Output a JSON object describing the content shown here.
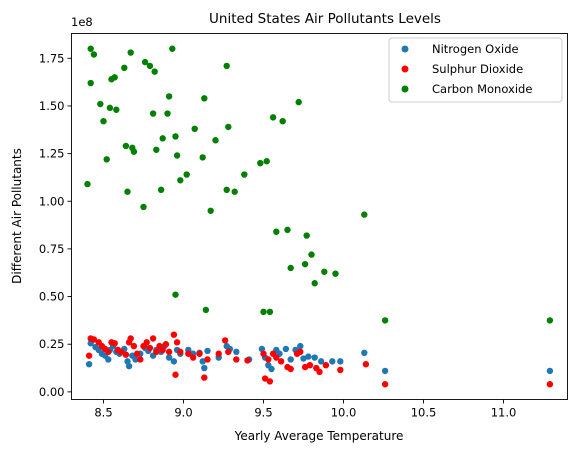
{
  "chart_data": {
    "type": "scatter",
    "title": "United States Air Pollutants Levels",
    "xlabel": "Yearly Average Temperature",
    "ylabel": "Different Air Pollutants",
    "y_offset_label": "1e8",
    "xlim": [
      8.3,
      11.4
    ],
    "ylim": [
      -4000000,
      188000000
    ],
    "x_ticks": [
      8.5,
      9.0,
      9.5,
      10.0,
      10.5,
      11.0
    ],
    "x_tick_labels": [
      "8.5",
      "9.0",
      "9.5",
      "10.0",
      "10.5",
      "11.0"
    ],
    "y_ticks": [
      0,
      25000000,
      50000000,
      75000000,
      100000000,
      125000000,
      150000000,
      175000000
    ],
    "y_tick_labels": [
      "0.00",
      "0.25",
      "0.50",
      "0.75",
      "1.00",
      "1.25",
      "1.50",
      "1.75"
    ],
    "grid": false,
    "legend_position": "top-right",
    "series": [
      {
        "name": "Nitrogen Oxide",
        "color": "#1f77b4",
        "points": [
          [
            8.41,
            14500000
          ],
          [
            8.42,
            25500000
          ],
          [
            8.45,
            23500000
          ],
          [
            8.47,
            22000000
          ],
          [
            8.49,
            20000000
          ],
          [
            8.51,
            19000000
          ],
          [
            8.53,
            17000000
          ],
          [
            8.54,
            22000000
          ],
          [
            8.56,
            24000000
          ],
          [
            8.58,
            21000000
          ],
          [
            8.6,
            20000000
          ],
          [
            8.63,
            22500000
          ],
          [
            8.65,
            16000000
          ],
          [
            8.66,
            13500000
          ],
          [
            8.68,
            19000000
          ],
          [
            8.7,
            17000000
          ],
          [
            8.73,
            20000000
          ],
          [
            8.76,
            23000000
          ],
          [
            8.78,
            21500000
          ],
          [
            8.81,
            19000000
          ],
          [
            8.83,
            22000000
          ],
          [
            8.86,
            21000000
          ],
          [
            8.88,
            24000000
          ],
          [
            8.91,
            18000000
          ],
          [
            8.94,
            16000000
          ],
          [
            8.96,
            22000000
          ],
          [
            8.98,
            20000000
          ],
          [
            9.03,
            22000000
          ],
          [
            9.06,
            20000000
          ],
          [
            9.1,
            20500000
          ],
          [
            9.12,
            16000000
          ],
          [
            9.13,
            12500000
          ],
          [
            9.15,
            21500000
          ],
          [
            9.22,
            18000000
          ],
          [
            9.27,
            24000000
          ],
          [
            9.29,
            22500000
          ],
          [
            9.33,
            21000000
          ],
          [
            9.41,
            17000000
          ],
          [
            9.49,
            22500000
          ],
          [
            9.51,
            18000000
          ],
          [
            9.53,
            14000000
          ],
          [
            9.55,
            12000000
          ],
          [
            9.58,
            22000000
          ],
          [
            9.6,
            20000000
          ],
          [
            9.64,
            22500000
          ],
          [
            9.67,
            17000000
          ],
          [
            9.7,
            22000000
          ],
          [
            9.73,
            24000000
          ],
          [
            9.75,
            17500000
          ],
          [
            9.78,
            18500000
          ],
          [
            9.82,
            18000000
          ],
          [
            9.86,
            16000000
          ],
          [
            9.93,
            16000000
          ],
          [
            9.98,
            16000000
          ],
          [
            10.13,
            20500000
          ],
          [
            10.26,
            11000000
          ],
          [
            11.29,
            11000000
          ]
        ]
      },
      {
        "name": "Sulphur Dioxide",
        "color": "#ff0000",
        "points": [
          [
            8.41,
            19000000
          ],
          [
            8.42,
            28000000
          ],
          [
            8.44,
            27500000
          ],
          [
            8.47,
            26000000
          ],
          [
            8.49,
            24000000
          ],
          [
            8.51,
            22500000
          ],
          [
            8.53,
            21000000
          ],
          [
            8.55,
            26000000
          ],
          [
            8.57,
            25500000
          ],
          [
            8.59,
            22000000
          ],
          [
            8.61,
            21000000
          ],
          [
            8.64,
            19500000
          ],
          [
            8.66,
            26000000
          ],
          [
            8.67,
            28000000
          ],
          [
            8.69,
            24000000
          ],
          [
            8.71,
            20000000
          ],
          [
            8.73,
            17000000
          ],
          [
            8.75,
            24000000
          ],
          [
            8.77,
            26000000
          ],
          [
            8.79,
            23000000
          ],
          [
            8.81,
            28000000
          ],
          [
            8.83,
            21000000
          ],
          [
            8.85,
            24000000
          ],
          [
            8.87,
            22000000
          ],
          [
            8.89,
            25000000
          ],
          [
            8.91,
            21000000
          ],
          [
            8.94,
            30000000
          ],
          [
            8.95,
            9000000
          ],
          [
            8.96,
            26000000
          ],
          [
            8.98,
            21000000
          ],
          [
            9.03,
            20000000
          ],
          [
            9.06,
            18000000
          ],
          [
            9.1,
            20000000
          ],
          [
            9.13,
            7500000
          ],
          [
            9.15,
            17000000
          ],
          [
            9.22,
            20000000
          ],
          [
            9.26,
            27000000
          ],
          [
            9.28,
            21000000
          ],
          [
            9.33,
            17000000
          ],
          [
            9.4,
            16500000
          ],
          [
            9.5,
            20000000
          ],
          [
            9.51,
            7000000
          ],
          [
            9.53,
            17000000
          ],
          [
            9.54,
            5500000
          ],
          [
            9.56,
            20000000
          ],
          [
            9.58,
            18000000
          ],
          [
            9.61,
            16000000
          ],
          [
            9.65,
            13000000
          ],
          [
            9.67,
            12000000
          ],
          [
            9.71,
            20000000
          ],
          [
            9.73,
            21000000
          ],
          [
            9.76,
            13000000
          ],
          [
            9.79,
            14000000
          ],
          [
            9.83,
            12500000
          ],
          [
            9.85,
            10500000
          ],
          [
            9.89,
            14000000
          ],
          [
            9.98,
            11500000
          ],
          [
            10.14,
            14500000
          ],
          [
            10.26,
            4000000
          ],
          [
            11.29,
            4000000
          ]
        ]
      },
      {
        "name": "Carbon Monoxide",
        "color": "#008000",
        "points": [
          [
            8.4,
            109000000
          ],
          [
            8.42,
            162000000
          ],
          [
            8.42,
            180000000
          ],
          [
            8.44,
            177000000
          ],
          [
            8.48,
            151000000
          ],
          [
            8.5,
            142000000
          ],
          [
            8.52,
            122000000
          ],
          [
            8.54,
            149000000
          ],
          [
            8.55,
            164000000
          ],
          [
            8.57,
            165000000
          ],
          [
            8.58,
            148000000
          ],
          [
            8.63,
            170000000
          ],
          [
            8.64,
            129000000
          ],
          [
            8.65,
            105000000
          ],
          [
            8.67,
            178000000
          ],
          [
            8.68,
            128000000
          ],
          [
            8.69,
            126000000
          ],
          [
            8.75,
            97000000
          ],
          [
            8.76,
            173000000
          ],
          [
            8.79,
            171000000
          ],
          [
            8.81,
            146000000
          ],
          [
            8.82,
            168000000
          ],
          [
            8.83,
            127000000
          ],
          [
            8.86,
            106000000
          ],
          [
            8.87,
            133000000
          ],
          [
            8.9,
            146000000
          ],
          [
            8.91,
            155000000
          ],
          [
            8.93,
            180000000
          ],
          [
            8.95,
            134000000
          ],
          [
            8.95,
            51000000
          ],
          [
            8.96,
            124000000
          ],
          [
            8.98,
            111000000
          ],
          [
            9.02,
            114000000
          ],
          [
            9.07,
            138000000
          ],
          [
            9.12,
            123000000
          ],
          [
            9.13,
            154000000
          ],
          [
            9.14,
            43000000
          ],
          [
            9.17,
            95000000
          ],
          [
            9.2,
            132000000
          ],
          [
            9.27,
            171000000
          ],
          [
            9.27,
            106000000
          ],
          [
            9.28,
            139000000
          ],
          [
            9.32,
            105000000
          ],
          [
            9.38,
            114000000
          ],
          [
            9.48,
            120000000
          ],
          [
            9.5,
            42000000
          ],
          [
            9.52,
            121000000
          ],
          [
            9.54,
            42000000
          ],
          [
            9.56,
            144000000
          ],
          [
            9.58,
            84000000
          ],
          [
            9.62,
            142000000
          ],
          [
            9.65,
            85000000
          ],
          [
            9.67,
            65000000
          ],
          [
            9.72,
            152000000
          ],
          [
            9.76,
            67000000
          ],
          [
            9.77,
            82000000
          ],
          [
            9.8,
            72000000
          ],
          [
            9.82,
            57000000
          ],
          [
            9.88,
            63000000
          ],
          [
            9.95,
            62000000
          ],
          [
            10.13,
            93000000
          ],
          [
            10.26,
            37500000
          ],
          [
            11.29,
            37500000
          ]
        ]
      }
    ]
  }
}
